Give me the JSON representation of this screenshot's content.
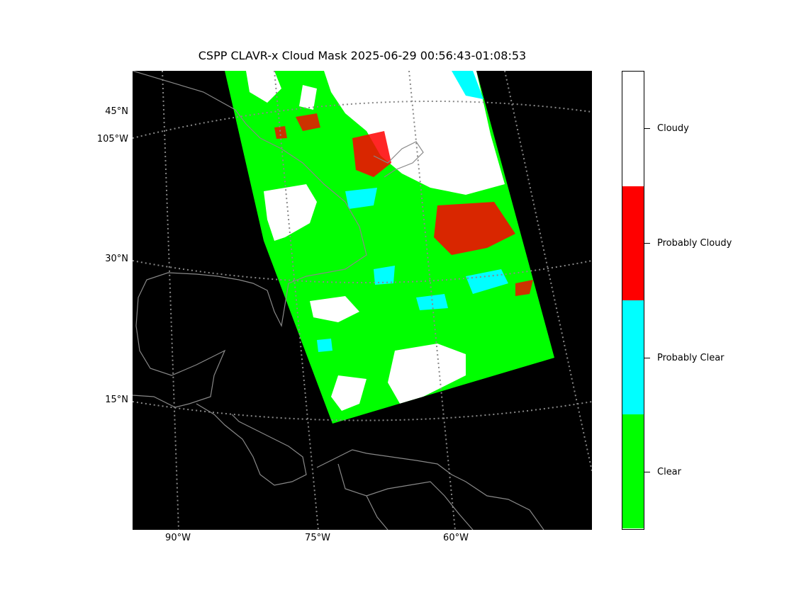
{
  "title": "CSPP CLAVR-x Cloud Mask 2025-06-29 00:56:43-01:08:53",
  "map": {
    "lat_labels": [
      "45°N",
      "105°W",
      "30°N",
      "15°N"
    ],
    "lon_labels": [
      "90°W",
      "75°W",
      "60°W"
    ],
    "background_color": "#000000",
    "grid_color": "#888888",
    "coastline_color": "#888888"
  },
  "legend": {
    "categories": [
      {
        "label": "Cloudy",
        "color": "#ffffff"
      },
      {
        "label": "Probably Cloudy",
        "color": "#ff0000"
      },
      {
        "label": "Probably Clear",
        "color": "#00ffff"
      },
      {
        "label": "Clear",
        "color": "#00ff00"
      }
    ]
  }
}
